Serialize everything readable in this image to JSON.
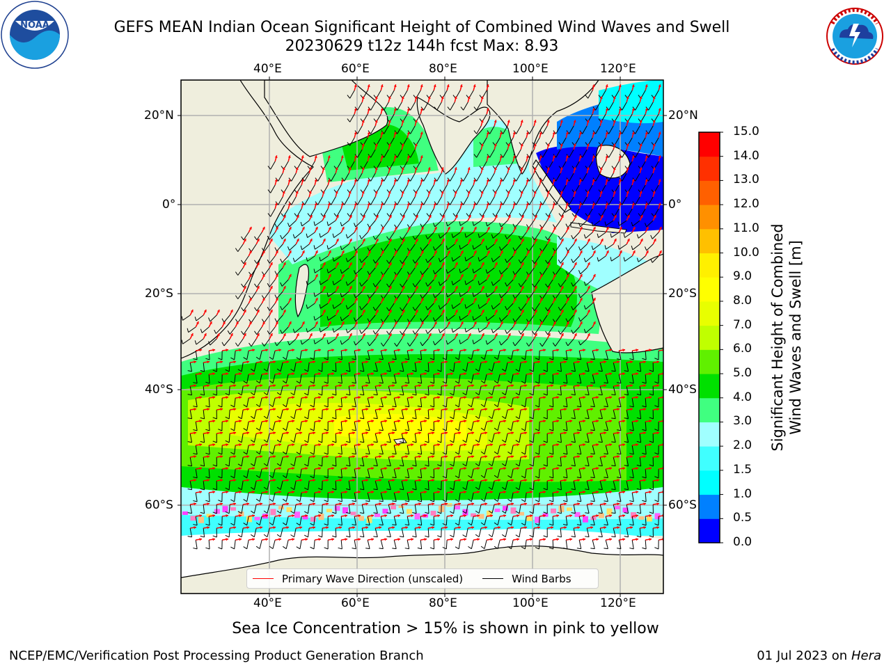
{
  "title_line1": "GEFS MEAN Indian Ocean Significant Height of Combined Wind Waves and Swell",
  "title_line2": "20230629 t12z 144h fcst   Max: 8.93",
  "lon_ticks": [
    "40°E",
    "60°E",
    "80°E",
    "100°E",
    "120°E"
  ],
  "lat_ticks": [
    "20°N",
    "0°",
    "20°S",
    "40°S",
    "60°S"
  ],
  "colorbar": {
    "label_line1": "Significant Height of Combined",
    "label_line2": "Wind Waves and Swell [m]",
    "ticks": [
      "0.0",
      "0.5",
      "1.0",
      "1.5",
      "2.0",
      "3.0",
      "4.0",
      "5.0",
      "6.0",
      "7.0",
      "8.0",
      "9.0",
      "10.0",
      "11.0",
      "12.0",
      "13.0",
      "14.0",
      "15.0"
    ],
    "colors": [
      "#0000ff",
      "#0080ff",
      "#00ffff",
      "#40ffff",
      "#a0ffff",
      "#40ff80",
      "#00e000",
      "#60f000",
      "#c0ff00",
      "#e8ff00",
      "#ffff00",
      "#fff000",
      "#ffc000",
      "#ff9000",
      "#ff6000",
      "#ff3000",
      "#ff0000"
    ]
  },
  "legend": {
    "wave_direction": "Primary Wave Direction (unscaled)",
    "wind_barbs": "Wind Barbs",
    "wave_color": "#ff0000",
    "barb_color": "#000000"
  },
  "sea_ice_note": "Sea Ice Concentration > 15% is shown in pink to yellow",
  "footer_left": "NCEP/EMC/Verification Post Processing Product Generation Branch",
  "footer_right_date": "01 Jul 2023 on ",
  "footer_right_host": "Hera",
  "noaa_logo_text": "NOAA",
  "land_color": "#efeedd"
}
